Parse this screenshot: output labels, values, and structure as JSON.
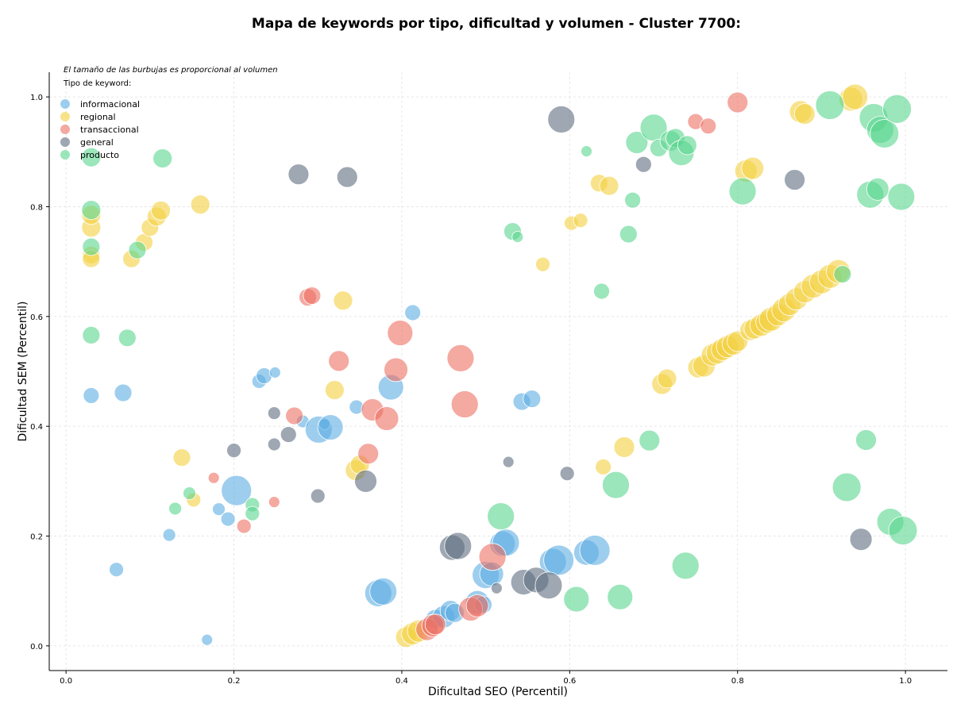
{
  "chart_data": {
    "type": "scatter",
    "title": "Mapa de keywords por tipo, dificultad y volumen - Cluster 7700:",
    "xlabel": "Dificultad SEO (Percentil)",
    "ylabel": "Dificultad SEM (Percentil)",
    "xlim": [
      -0.02,
      1.05
    ],
    "ylim": [
      -0.045,
      1.045
    ],
    "x_ticks": [
      "0.0",
      "0.2",
      "0.4",
      "0.6",
      "0.8",
      "1.0"
    ],
    "y_ticks": [
      "0.0",
      "0.2",
      "0.4",
      "0.6",
      "0.8",
      "1.0"
    ],
    "grid": true,
    "annotation": "El tamaño de las burbujas es proporcional al volumen",
    "legend_title": "Tipo de keyword:",
    "legend_position": "top-left",
    "series": [
      {
        "name": "informacional",
        "color": "#5dade2",
        "points": [
          [
            0.03,
            0.456,
            10
          ],
          [
            0.068,
            0.461,
            11
          ],
          [
            0.06,
            0.139,
            9
          ],
          [
            0.123,
            0.202,
            8
          ],
          [
            0.168,
            0.011,
            7
          ],
          [
            0.182,
            0.249,
            8
          ],
          [
            0.193,
            0.231,
            9
          ],
          [
            0.203,
            0.283,
            19
          ],
          [
            0.23,
            0.482,
            9
          ],
          [
            0.236,
            0.492,
            10
          ],
          [
            0.249,
            0.498,
            7
          ],
          [
            0.282,
            0.409,
            8
          ],
          [
            0.301,
            0.394,
            17
          ],
          [
            0.308,
            0.404,
            7
          ],
          [
            0.315,
            0.398,
            16
          ],
          [
            0.346,
            0.435,
            9
          ],
          [
            0.387,
            0.471,
            16
          ],
          [
            0.372,
            0.096,
            17
          ],
          [
            0.378,
            0.099,
            17
          ],
          [
            0.413,
            0.607,
            10
          ],
          [
            0.44,
            0.049,
            12
          ],
          [
            0.45,
            0.053,
            14
          ],
          [
            0.458,
            0.064,
            13
          ],
          [
            0.463,
            0.06,
            12
          ],
          [
            0.49,
            0.079,
            15
          ],
          [
            0.497,
            0.075,
            11
          ],
          [
            0.5,
            0.129,
            17
          ],
          [
            0.507,
            0.131,
            15
          ],
          [
            0.52,
            0.186,
            16
          ],
          [
            0.524,
            0.188,
            17
          ],
          [
            0.543,
            0.445,
            11
          ],
          [
            0.555,
            0.45,
            11
          ],
          [
            0.58,
            0.153,
            17
          ],
          [
            0.587,
            0.156,
            19
          ],
          [
            0.62,
            0.17,
            16
          ],
          [
            0.63,
            0.174,
            19
          ]
        ]
      },
      {
        "name": "regional",
        "color": "#f4d03f",
        "points": [
          [
            0.03,
            0.762,
            12
          ],
          [
            0.03,
            0.785,
            12
          ],
          [
            0.03,
            0.712,
            11
          ],
          [
            0.03,
            0.705,
            11
          ],
          [
            0.078,
            0.705,
            11
          ],
          [
            0.093,
            0.735,
            11
          ],
          [
            0.1,
            0.762,
            11
          ],
          [
            0.108,
            0.782,
            12
          ],
          [
            0.113,
            0.793,
            12
          ],
          [
            0.16,
            0.804,
            12
          ],
          [
            0.138,
            0.343,
            11
          ],
          [
            0.152,
            0.266,
            9
          ],
          [
            0.32,
            0.466,
            12
          ],
          [
            0.33,
            0.629,
            12
          ],
          [
            0.345,
            0.32,
            13
          ],
          [
            0.35,
            0.33,
            12
          ],
          [
            0.405,
            0.016,
            13
          ],
          [
            0.413,
            0.022,
            14
          ],
          [
            0.42,
            0.027,
            14
          ],
          [
            0.568,
            0.695,
            9
          ],
          [
            0.602,
            0.77,
            9
          ],
          [
            0.613,
            0.775,
            9
          ],
          [
            0.635,
            0.843,
            11
          ],
          [
            0.647,
            0.838,
            12
          ],
          [
            0.64,
            0.326,
            10
          ],
          [
            0.665,
            0.362,
            13
          ],
          [
            0.71,
            0.477,
            13
          ],
          [
            0.716,
            0.487,
            12
          ],
          [
            0.753,
            0.507,
            13
          ],
          [
            0.76,
            0.51,
            14
          ],
          [
            0.77,
            0.53,
            14
          ],
          [
            0.776,
            0.534,
            14
          ],
          [
            0.782,
            0.54,
            14
          ],
          [
            0.788,
            0.545,
            14
          ],
          [
            0.795,
            0.55,
            14
          ],
          [
            0.8,
            0.555,
            13
          ],
          [
            0.815,
            0.575,
            13
          ],
          [
            0.82,
            0.578,
            13
          ],
          [
            0.828,
            0.584,
            14
          ],
          [
            0.835,
            0.59,
            14
          ],
          [
            0.84,
            0.595,
            15
          ],
          [
            0.848,
            0.603,
            14
          ],
          [
            0.855,
            0.612,
            15
          ],
          [
            0.862,
            0.622,
            14
          ],
          [
            0.87,
            0.632,
            14
          ],
          [
            0.88,
            0.645,
            14
          ],
          [
            0.89,
            0.655,
            15
          ],
          [
            0.9,
            0.663,
            15
          ],
          [
            0.91,
            0.673,
            15
          ],
          [
            0.92,
            0.682,
            15
          ],
          [
            0.81,
            0.865,
            14
          ],
          [
            0.818,
            0.87,
            14
          ],
          [
            0.875,
            0.973,
            14
          ],
          [
            0.88,
            0.969,
            13
          ],
          [
            0.935,
            0.996,
            15
          ],
          [
            0.94,
            1.0,
            16
          ]
        ]
      },
      {
        "name": "transaccional",
        "color": "#ec7063",
        "points": [
          [
            0.176,
            0.306,
            7
          ],
          [
            0.212,
            0.218,
            9
          ],
          [
            0.248,
            0.262,
            7
          ],
          [
            0.272,
            0.419,
            11
          ],
          [
            0.288,
            0.635,
            11
          ],
          [
            0.293,
            0.638,
            11
          ],
          [
            0.325,
            0.519,
            13
          ],
          [
            0.36,
            0.35,
            13
          ],
          [
            0.365,
            0.43,
            14
          ],
          [
            0.382,
            0.414,
            15
          ],
          [
            0.393,
            0.503,
            15
          ],
          [
            0.398,
            0.57,
            16
          ],
          [
            0.43,
            0.03,
            14
          ],
          [
            0.437,
            0.037,
            14
          ],
          [
            0.44,
            0.039,
            13
          ],
          [
            0.47,
            0.524,
            17
          ],
          [
            0.475,
            0.44,
            17
          ],
          [
            0.482,
            0.067,
            15
          ],
          [
            0.49,
            0.073,
            14
          ],
          [
            0.508,
            0.162,
            17
          ],
          [
            0.75,
            0.955,
            10
          ],
          [
            0.765,
            0.947,
            10
          ],
          [
            0.8,
            0.99,
            13
          ]
        ]
      },
      {
        "name": "general",
        "color": "#5d6d7e",
        "points": [
          [
            0.2,
            0.356,
            9
          ],
          [
            0.248,
            0.424,
            8
          ],
          [
            0.248,
            0.367,
            8
          ],
          [
            0.265,
            0.385,
            10
          ],
          [
            0.277,
            0.859,
            13
          ],
          [
            0.3,
            0.273,
            9
          ],
          [
            0.335,
            0.854,
            13
          ],
          [
            0.357,
            0.3,
            14
          ],
          [
            0.46,
            0.179,
            16
          ],
          [
            0.467,
            0.182,
            17
          ],
          [
            0.513,
            0.105,
            7
          ],
          [
            0.527,
            0.335,
            7
          ],
          [
            0.545,
            0.116,
            16
          ],
          [
            0.56,
            0.12,
            16
          ],
          [
            0.575,
            0.11,
            17
          ],
          [
            0.59,
            0.959,
            17
          ],
          [
            0.597,
            0.314,
            9
          ],
          [
            0.688,
            0.877,
            10
          ],
          [
            0.868,
            0.849,
            13
          ],
          [
            0.947,
            0.194,
            14
          ]
        ]
      },
      {
        "name": "producto",
        "color": "#58d68d",
        "points": [
          [
            0.03,
            0.89,
            12
          ],
          [
            0.03,
            0.794,
            12
          ],
          [
            0.03,
            0.727,
            11
          ],
          [
            0.03,
            0.566,
            11
          ],
          [
            0.073,
            0.561,
            11
          ],
          [
            0.085,
            0.721,
            11
          ],
          [
            0.115,
            0.888,
            12
          ],
          [
            0.13,
            0.25,
            8
          ],
          [
            0.147,
            0.278,
            8
          ],
          [
            0.222,
            0.257,
            9
          ],
          [
            0.222,
            0.241,
            9
          ],
          [
            0.518,
            0.236,
            17
          ],
          [
            0.532,
            0.755,
            11
          ],
          [
            0.538,
            0.745,
            7
          ],
          [
            0.608,
            0.085,
            16
          ],
          [
            0.62,
            0.901,
            7
          ],
          [
            0.638,
            0.646,
            10
          ],
          [
            0.655,
            0.293,
            17
          ],
          [
            0.66,
            0.089,
            16
          ],
          [
            0.67,
            0.75,
            11
          ],
          [
            0.675,
            0.812,
            10
          ],
          [
            0.68,
            0.917,
            14
          ],
          [
            0.695,
            0.374,
            13
          ],
          [
            0.7,
            0.944,
            17
          ],
          [
            0.706,
            0.907,
            11
          ],
          [
            0.72,
            0.92,
            13
          ],
          [
            0.726,
            0.925,
            12
          ],
          [
            0.733,
            0.898,
            16
          ],
          [
            0.74,
            0.912,
            12
          ],
          [
            0.738,
            0.146,
            17
          ],
          [
            0.806,
            0.828,
            17
          ],
          [
            0.91,
            0.985,
            18
          ],
          [
            0.925,
            0.677,
            11
          ],
          [
            0.93,
            0.289,
            18
          ],
          [
            0.953,
            0.375,
            13
          ],
          [
            0.958,
            0.822,
            17
          ],
          [
            0.962,
            0.962,
            18
          ],
          [
            0.967,
            0.832,
            14
          ],
          [
            0.97,
            0.94,
            17
          ],
          [
            0.975,
            0.933,
            18
          ],
          [
            0.982,
            0.226,
            17
          ],
          [
            0.99,
            0.978,
            18
          ],
          [
            0.995,
            0.818,
            17
          ],
          [
            0.997,
            0.21,
            18
          ]
        ]
      }
    ]
  }
}
